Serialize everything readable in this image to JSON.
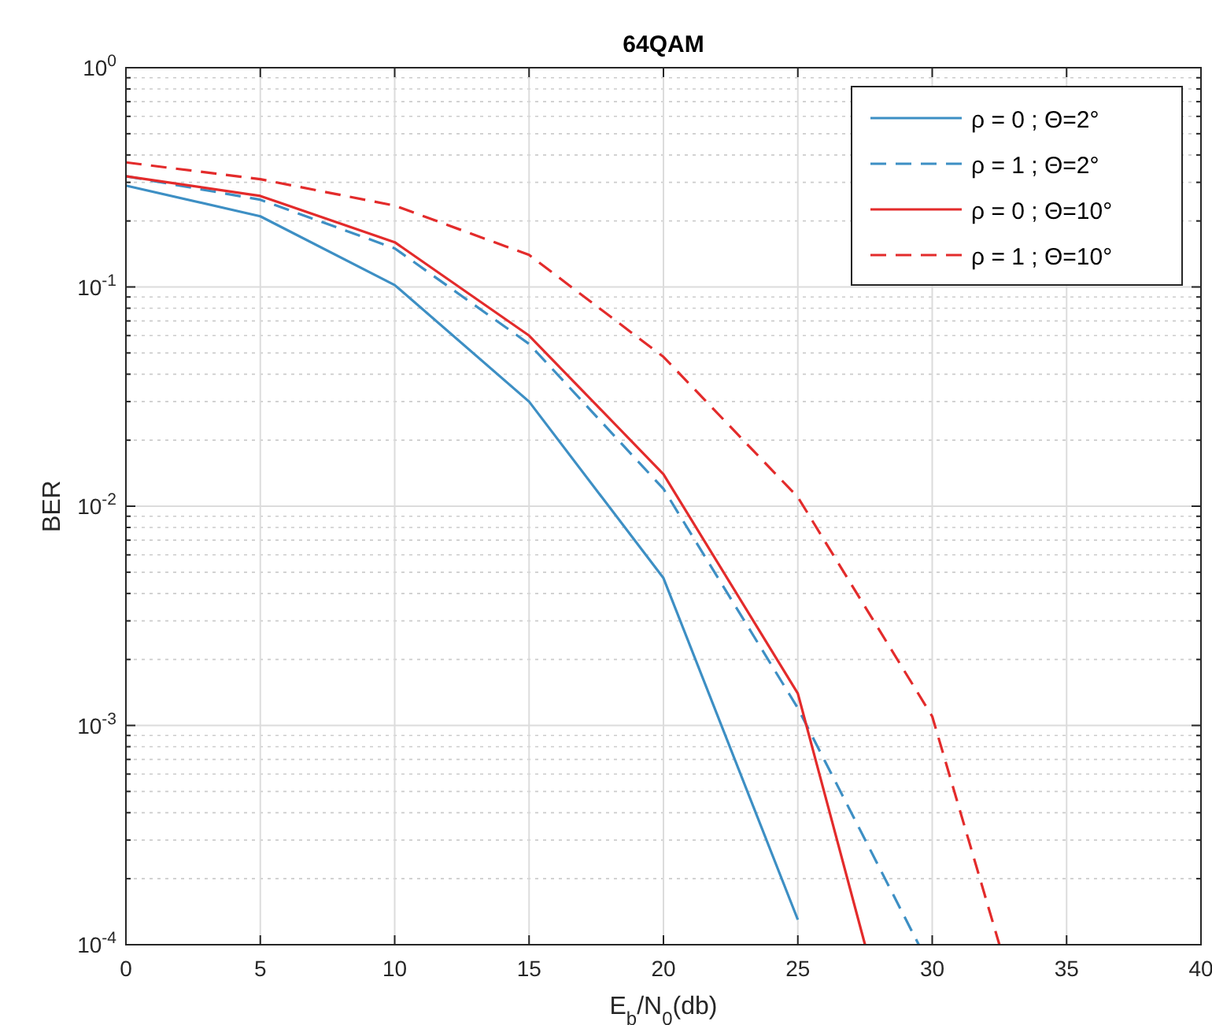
{
  "chart_data": {
    "type": "line",
    "title": "64QAM",
    "xlabel": "E$_{b}$/N$_{0}$(db)",
    "ylabel": "BER",
    "log": "y",
    "grid": true,
    "legend": "top right",
    "xlim": [
      0,
      40
    ],
    "xticks": [
      0,
      5,
      10,
      15,
      20,
      25,
      30,
      35,
      40
    ],
    "ylim": [
      0.0001,
      1
    ],
    "yticks": [
      {
        "value": 0.0001,
        "label": "10$^{-4}$"
      },
      {
        "value": 0.001,
        "label": "10$^{-3}$"
      },
      {
        "value": 0.01,
        "label": "10$^{-2}$"
      },
      {
        "value": 0.1,
        "label": "10$^{-1}$"
      },
      {
        "value": 1,
        "label": "10$^{0}$"
      }
    ],
    "series": [
      {
        "name": "ρ = 0 ; Θ=2°",
        "color": "#3d8fc4",
        "line_style": "solid",
        "x": [
          0,
          5,
          10,
          15,
          20,
          25
        ],
        "values": [
          0.29,
          0.21,
          0.102,
          0.03,
          0.0047,
          0.00013
        ]
      },
      {
        "name": "ρ = 1 ; Θ=2°",
        "color": "#3d8fc4",
        "line_style": "dashed",
        "x": [
          0,
          5,
          10,
          15,
          20,
          25,
          29.5
        ],
        "values": [
          0.32,
          0.25,
          0.15,
          0.055,
          0.012,
          0.0012,
          0.0001
        ]
      },
      {
        "name": "ρ = 0 ; Θ=10°",
        "color": "#e32b2b",
        "line_style": "solid",
        "x": [
          0,
          5,
          10,
          15,
          20,
          25,
          27.5
        ],
        "values": [
          0.32,
          0.26,
          0.16,
          0.06,
          0.014,
          0.0014,
          0.0001
        ]
      },
      {
        "name": "ρ = 1 ; Θ=10°",
        "color": "#e32b2b",
        "line_style": "dashed",
        "x": [
          0,
          5,
          10,
          15,
          20,
          25,
          30,
          32.5
        ],
        "values": [
          0.37,
          0.31,
          0.235,
          0.14,
          0.048,
          0.011,
          0.0011,
          0.0001
        ]
      }
    ]
  }
}
